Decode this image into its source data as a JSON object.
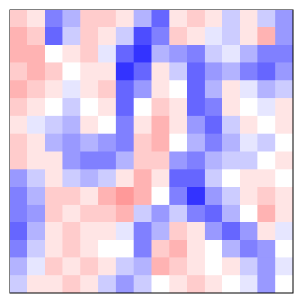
{
  "chart_data": {
    "type": "heatmap",
    "colormap": "bwr",
    "clim": [
      -1,
      1
    ],
    "values": [
      [
        0.2,
        0.1,
        -0.5,
        -0.3,
        0.2,
        0.2,
        0.1,
        -0.3,
        -0.6,
        0.1,
        0.2,
        0.1,
        -0.2,
        0.1,
        -0.2,
        -0.4
      ],
      [
        0.3,
        0.2,
        -0.6,
        -0.2,
        0.2,
        0.1,
        -0.2,
        -0.7,
        -0.5,
        0.2,
        0.1,
        -0.1,
        -0.2,
        0.1,
        0.3,
        -0.4
      ],
      [
        0.3,
        0.3,
        0.0,
        0.1,
        0.2,
        -0.1,
        -0.6,
        -0.8,
        -0.3,
        -0.4,
        -0.5,
        -0.2,
        -0.1,
        -0.3,
        -0.5,
        -0.5
      ],
      [
        0.2,
        0.3,
        0.2,
        0.0,
        0.1,
        0.1,
        -0.8,
        -0.6,
        0.1,
        -0.2,
        -0.6,
        -0.4,
        -0.3,
        -0.5,
        -0.6,
        -0.4
      ],
      [
        0.3,
        0.2,
        0.1,
        -0.1,
        0.1,
        0.2,
        -0.6,
        -0.4,
        0.1,
        0.0,
        -0.6,
        -0.3,
        0.1,
        -0.1,
        -0.3,
        -0.2
      ],
      [
        0.2,
        0.1,
        0.0,
        -0.2,
        0.0,
        0.1,
        -0.6,
        0.0,
        0.2,
        0.1,
        -0.6,
        -0.5,
        0.1,
        0.0,
        -0.1,
        0.1
      ],
      [
        0.1,
        -0.1,
        -0.2,
        -0.3,
        0.1,
        0.0,
        -0.5,
        0.1,
        0.3,
        0.1,
        -0.4,
        -0.6,
        -0.2,
        0.1,
        0.0,
        0.1
      ],
      [
        0.2,
        0.1,
        -0.3,
        -0.4,
        -0.3,
        -0.4,
        -0.5,
        0.2,
        0.3,
        0.0,
        -0.3,
        -0.5,
        -0.3,
        -0.1,
        -0.2,
        0.0
      ],
      [
        0.2,
        0.1,
        0.1,
        -0.4,
        -0.5,
        -0.5,
        -0.3,
        0.2,
        0.2,
        -0.4,
        -0.5,
        -0.3,
        -0.2,
        -0.2,
        0.0,
        0.1
      ],
      [
        -0.4,
        -0.2,
        0.1,
        -0.2,
        -0.3,
        -0.2,
        0.1,
        0.3,
        0.1,
        -0.6,
        -0.6,
        -0.2,
        0.0,
        0.1,
        0.1,
        0.0
      ],
      [
        -0.5,
        -0.3,
        0.2,
        0.2,
        0.1,
        0.3,
        0.4,
        0.3,
        0.0,
        -0.5,
        -0.8,
        -0.4,
        -0.2,
        0.1,
        0.2,
        0.1
      ],
      [
        -0.5,
        -0.4,
        0.2,
        0.1,
        0.2,
        0.2,
        0.3,
        -0.2,
        -0.4,
        -0.2,
        -0.5,
        -0.6,
        -0.3,
        0.0,
        0.3,
        0.1
      ],
      [
        -0.6,
        -0.3,
        0.1,
        0.2,
        0.1,
        0.1,
        -0.1,
        -0.5,
        -0.3,
        0.2,
        0.1,
        -0.4,
        -0.6,
        -0.4,
        0.1,
        -0.1
      ],
      [
        -0.5,
        -0.2,
        0.1,
        0.2,
        0.1,
        0.0,
        0.0,
        -0.5,
        0.2,
        0.3,
        0.1,
        0.0,
        -0.3,
        -0.5,
        -0.4,
        0.0
      ],
      [
        -0.3,
        -0.1,
        0.2,
        0.1,
        0.2,
        0.1,
        -0.2,
        -0.3,
        0.3,
        0.2,
        0.1,
        0.0,
        0.1,
        -0.2,
        -0.4,
        -0.1
      ],
      [
        -0.2,
        0.1,
        0.1,
        0.2,
        0.1,
        -0.2,
        -0.4,
        -0.2,
        0.0,
        0.1,
        0.2,
        0.1,
        0.0,
        -0.1,
        -0.4,
        0.0
      ]
    ]
  }
}
